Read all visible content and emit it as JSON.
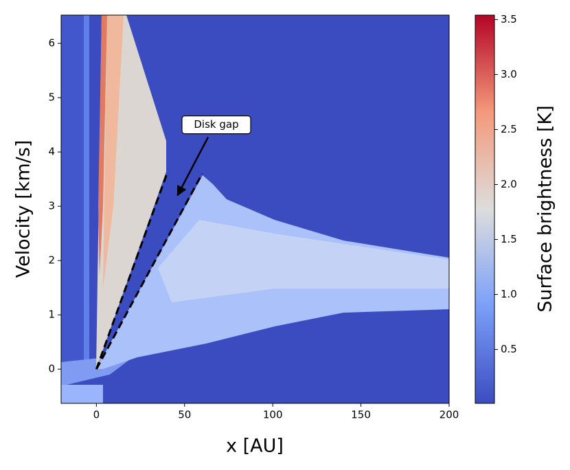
{
  "chart_data": {
    "type": "heatmap",
    "xlabel": "x [AU]",
    "ylabel": "Velocity [km/s]",
    "xlim": [
      -20,
      200
    ],
    "ylim": [
      -0.63,
      6.52
    ],
    "xticks": [
      0,
      50,
      100,
      150,
      200
    ],
    "yticks": [
      0,
      1,
      2,
      3,
      4,
      5,
      6
    ],
    "colorbar": {
      "label": "Surface brightness [K]",
      "clim": [
        0.01,
        3.54
      ],
      "ticks": [
        {
          "value": 0.5,
          "label": "0.5"
        },
        {
          "value": 1,
          "label": "1.0"
        },
        {
          "value": 1.5,
          "label": "1.5"
        },
        {
          "value": 2,
          "label": "2.0"
        },
        {
          "value": 2.5,
          "label": "2.5"
        },
        {
          "value": 3,
          "label": "3.0"
        },
        {
          "value": 3.5,
          "label": "3.5"
        }
      ]
    },
    "lines": [
      {
        "x": [
          0,
          40
        ],
        "y": [
          0,
          3.6
        ],
        "color": "#000000"
      },
      {
        "x": [
          0,
          60
        ],
        "y": [
          0,
          3.6
        ],
        "color": "#000000"
      }
    ],
    "annotation": {
      "text": "Disk gap",
      "xy": [
        46,
        3.2
      ],
      "xytext": [
        68,
        4.5
      ]
    }
  }
}
